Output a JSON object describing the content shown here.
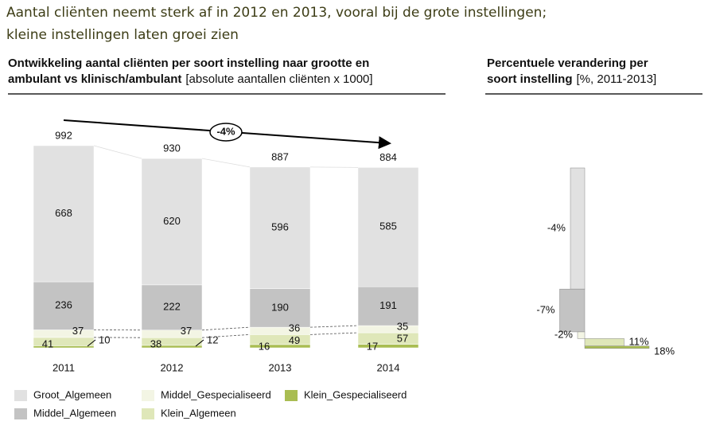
{
  "header": {
    "title_lines": [
      "Aantal cliënten neemt sterk af in 2012 en 2013, vooral bij de grote instellingen;",
      "kleine instellingen laten groei zien"
    ]
  },
  "chart_data": [
    {
      "type": "stacked-bar",
      "title_lines": [
        "Ontwikkeling aantal cliënten per soort instelling naar grootte en",
        "ambulant vs klinisch/ambulant"
      ],
      "unit": "[absolute aantallen cliënten x 1000]",
      "categories": [
        "2011",
        "2012",
        "2013",
        "2014"
      ],
      "series": [
        {
          "name": "Klein_Gespecialiseerd",
          "color": "#a9bd52",
          "values": [
            10,
            12,
            16,
            17
          ]
        },
        {
          "name": "Klein_Algemeen",
          "color": "#dfe7b9",
          "values": [
            41,
            38,
            49,
            57
          ]
        },
        {
          "name": "Middel_Gespecialiseerd",
          "color": "#f3f5e4",
          "values": [
            37,
            37,
            36,
            35
          ]
        },
        {
          "name": "Middel_Algemeen",
          "color": "#c3c3c3",
          "values": [
            236,
            222,
            190,
            191
          ]
        },
        {
          "name": "Groot_Algemeen",
          "color": "#e1e1e1",
          "values": [
            668,
            620,
            596,
            585
          ]
        }
      ],
      "totals": [
        992,
        930,
        887,
        884
      ],
      "annotation": "-4%"
    },
    {
      "type": "waterfall-bar",
      "title_lines": [
        "Percentuele verandering per",
        "soort instelling"
      ],
      "unit": "[%, 2011-2013]",
      "values": [
        -4,
        -7,
        -2,
        11,
        18
      ],
      "value_labels": [
        "-4%",
        "-7%",
        "-2%",
        "11%",
        "18%"
      ],
      "colors": [
        "#e1e1e1",
        "#c3c3c3",
        "#f3f5e4",
        "#dfe7b9",
        "#a9bd52"
      ]
    }
  ]
}
